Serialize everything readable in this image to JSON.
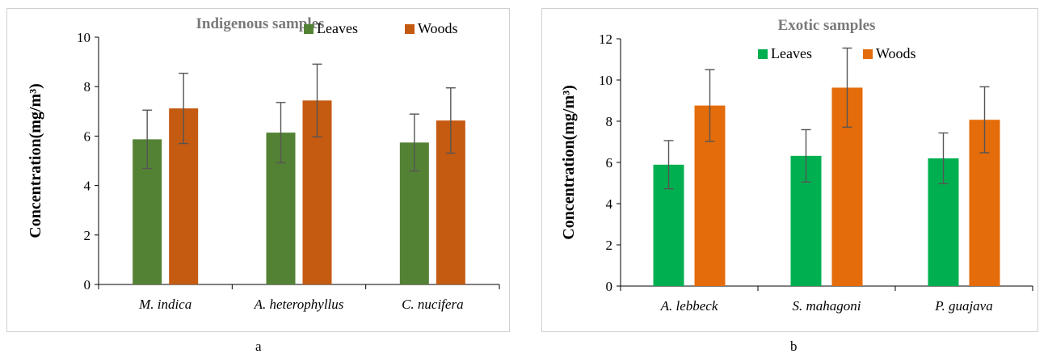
{
  "captions": [
    "a",
    "b"
  ],
  "chart_data": [
    {
      "type": "bar",
      "title": "Indigenous samples",
      "xlabel": "",
      "ylabel": "Concentration(mg/m³)",
      "ylim": [
        0,
        10
      ],
      "yticks": [
        "0",
        "2",
        "4",
        "6",
        "8",
        "10"
      ],
      "categories": [
        "M. indica",
        "A. heterophyllus",
        "C. nucifera"
      ],
      "series": [
        {
          "name": "Leaves",
          "color": "#548235",
          "values": [
            5.87,
            6.14,
            5.74
          ],
          "errors": [
            1.18,
            1.22,
            1.15
          ]
        },
        {
          "name": "Woods",
          "color": "#c55a11",
          "values": [
            7.12,
            7.44,
            6.63
          ],
          "errors": [
            1.42,
            1.47,
            1.32
          ]
        }
      ],
      "grid": false,
      "legend_position": "top-right"
    },
    {
      "type": "bar",
      "title": "Exotic samples",
      "xlabel": "",
      "ylabel": "Concentration(mg/m³)",
      "ylim": [
        0,
        12
      ],
      "yticks": [
        "0",
        "2",
        "4",
        "6",
        "8",
        "10",
        "12"
      ],
      "categories": [
        "A. lebbeck",
        "S. mahagoni",
        "P. guajava"
      ],
      "series": [
        {
          "name": "Leaves",
          "color": "#00b050",
          "values": [
            5.89,
            6.32,
            6.2
          ],
          "errors": [
            1.17,
            1.27,
            1.23
          ]
        },
        {
          "name": "Woods",
          "color": "#e46c0a",
          "values": [
            8.76,
            9.63,
            8.07
          ],
          "errors": [
            1.74,
            1.92,
            1.6
          ]
        }
      ],
      "grid": false,
      "legend_position": "top-right"
    }
  ]
}
